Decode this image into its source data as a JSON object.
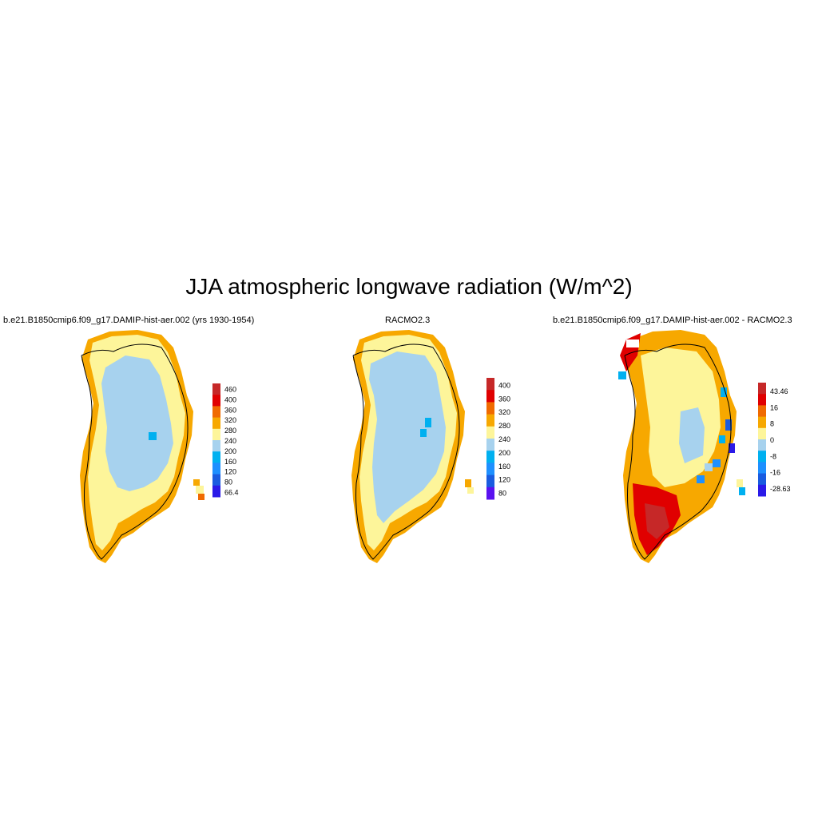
{
  "title": "JJA atmospheric longwave radiation (W/m^2)",
  "panels": [
    {
      "id": "model",
      "title": "b.e21.B1850cmip6.f09_g17.DAMIP-hist-aer.002 (yrs 1930-1954)",
      "colorbar": {
        "labels": [
          "460",
          "400",
          "360",
          "320",
          "280",
          "240",
          "200",
          "160",
          "120",
          "80",
          "66.4"
        ],
        "colors": [
          "#c62828",
          "#e00000",
          "#f06a00",
          "#f7a800",
          "#fdf59a",
          "#a7d2ee",
          "#00b0f0",
          "#1e90ff",
          "#1a5ce0",
          "#2a1ae8"
        ]
      }
    },
    {
      "id": "racmo",
      "title": "RACMO2.3",
      "colorbar": {
        "labels": [
          "400",
          "360",
          "320",
          "280",
          "240",
          "200",
          "160",
          "120",
          "80"
        ],
        "colors": [
          "#c62828",
          "#e00000",
          "#f06a00",
          "#f7a800",
          "#fdf59a",
          "#a7d2ee",
          "#00b0f0",
          "#1e90ff",
          "#1a5ce0",
          "#5a12f0"
        ]
      }
    },
    {
      "id": "diff",
      "title": "b.e21.B1850cmip6.f09_g17.DAMIP-hist-aer.002 - RACMO2.3",
      "colorbar": {
        "labels": [
          "43.46",
          "16",
          "8",
          "0",
          "-8",
          "-16",
          "-28.63"
        ],
        "colors": [
          "#c62828",
          "#e00000",
          "#f06a00",
          "#f7a800",
          "#fdf59a",
          "#a7d2ee",
          "#00b0f0",
          "#1e90ff",
          "#1a5ce0",
          "#2a1ae8"
        ]
      }
    }
  ]
}
